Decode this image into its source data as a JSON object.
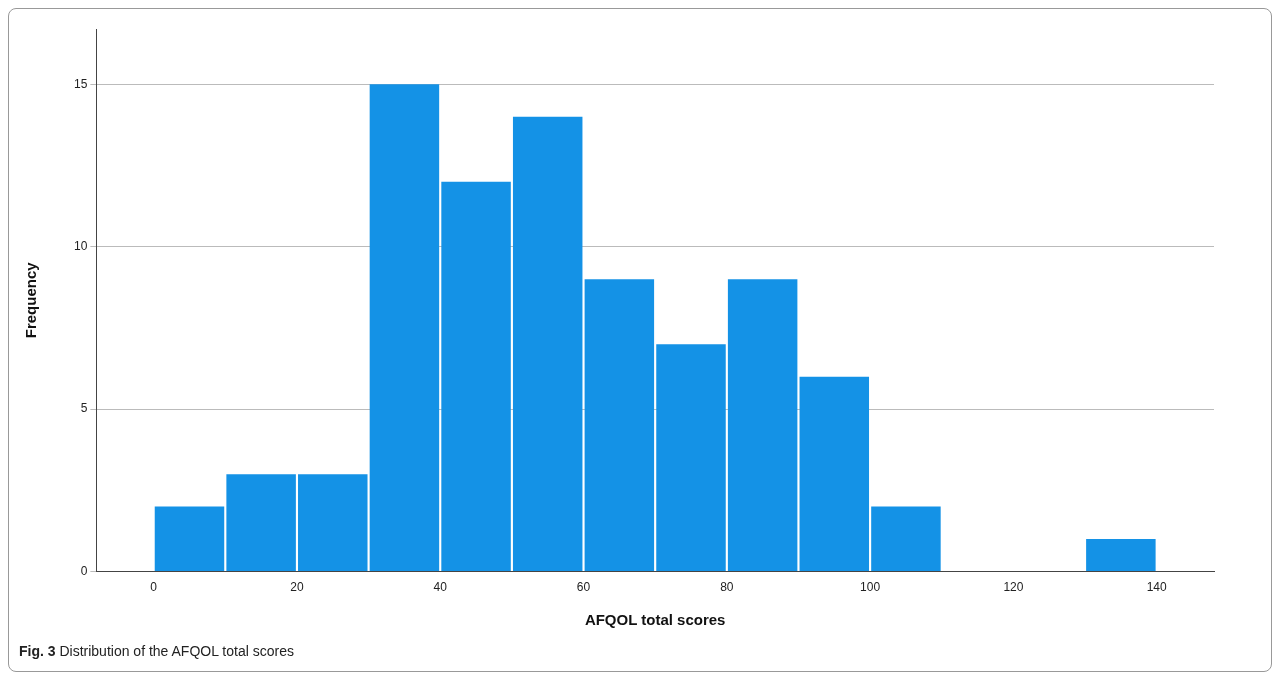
{
  "chart_data": {
    "type": "histogram",
    "xlabel": "AFQOL total scores",
    "ylabel": "Frequency",
    "bins": [
      0,
      10,
      20,
      30,
      40,
      50,
      60,
      70,
      80,
      90,
      100,
      110,
      120,
      130,
      140
    ],
    "values": [
      2,
      3,
      3,
      15,
      12,
      14,
      9,
      7,
      9,
      6,
      2,
      0,
      0,
      1
    ],
    "color": "#1492e6",
    "xlim": [
      -8,
      148
    ],
    "xticks": [
      0,
      20,
      40,
      60,
      80,
      100,
      120,
      140
    ],
    "ylim": [
      0,
      16.7
    ],
    "yticks": [
      0,
      5,
      10,
      15
    ],
    "grid": "y",
    "legend": false,
    "annotations": [
      "Fig. 3 Distribution of the AFQOL total scores"
    ]
  }
}
